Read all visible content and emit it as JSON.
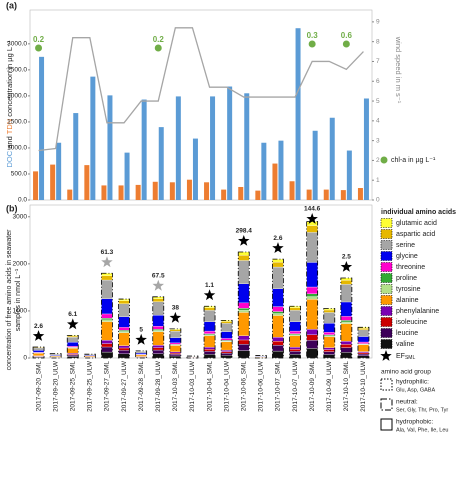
{
  "chart_data": [
    {
      "type": "bar",
      "panel_label": "(a)",
      "ylabel": "concentration in µg L⁻¹",
      "ylabel_and": "and",
      "y2label": "wind speed in m s⁻¹",
      "ylim": [
        0,
        3650
      ],
      "yticks": [
        {
          "value": 0,
          "label": "0.0"
        },
        {
          "value": 500,
          "label": "500.0"
        },
        {
          "value": 1000,
          "label": "1000.0"
        },
        {
          "value": 1500,
          "label": "1500.0"
        },
        {
          "value": 2000,
          "label": "2000.0"
        },
        {
          "value": 2500,
          "label": "2500.0"
        },
        {
          "value": 3000,
          "label": "3000.0"
        }
      ],
      "y2lim": [
        0,
        9.6
      ],
      "y2ticks": [
        0,
        1,
        2,
        3,
        4,
        5,
        6,
        7,
        8,
        9
      ],
      "series": [
        {
          "name": "DOC",
          "color": "#5b9bd5",
          "values": [
            2750,
            1100,
            1670,
            2370,
            2010,
            910,
            1930,
            1400,
            1990,
            1180,
            1990,
            2180,
            2050,
            1100,
            1140,
            3300,
            1330,
            1580,
            950,
            1950
          ]
        },
        {
          "name": "TDN",
          "color": "#ed7d31",
          "values": [
            550,
            680,
            200,
            670,
            280,
            280,
            290,
            350,
            340,
            390,
            340,
            200,
            250,
            180,
            700,
            360,
            200,
            200,
            190,
            230
          ]
        },
        {
          "name": "wind speed",
          "type": "line",
          "axis": "y2",
          "color": "#a6a6a6",
          "values": [
            2.5,
            2.6,
            8.2,
            8.2,
            3.9,
            3.9,
            5.0,
            5.0,
            8.7,
            8.7,
            5.7,
            5.7,
            5.2,
            5.2,
            5.2,
            5.2,
            7.0,
            7.0,
            6.6,
            7.5
          ]
        },
        {
          "name": "chl-a in µg L⁻¹",
          "type": "dot",
          "color": "#70ad47",
          "values": [
            0.2,
            null,
            null,
            null,
            null,
            null,
            null,
            0.2,
            null,
            null,
            null,
            null,
            null,
            null,
            null,
            null,
            0.3,
            null,
            0.6,
            null
          ]
        }
      ]
    },
    {
      "type": "stacked_bar",
      "panel_label": "(b)",
      "ylabel": [
        "concentration of free amino acids in seawater",
        "samples in nmol L⁻¹"
      ],
      "legend_title": "individual amino acids",
      "ylim": [
        0,
        3250
      ],
      "yticks": [
        0,
        1000,
        2000,
        3000
      ],
      "categories": [
        "2017-09-20_SML",
        "2017-09-20_ULW",
        "2017-09-25_SML",
        "2017-09-25_ULW",
        "2017-09-27_SML",
        "2017-09-27_ULW",
        "2017-09-28_SML",
        "2017-09-28_ULW",
        "2017-10-03_SML",
        "2017-10-03_ULW",
        "2017-10-04_SML",
        "2017-10-04_ULW",
        "2017-10-06_SML",
        "2017-10-06_ULW",
        "2017-10-07_SML",
        "2017-10-07_ULW",
        "2017-10-09_SML",
        "2017-10-09_ULW",
        "2017-10-10_SML",
        "2017-10-10_ULW"
      ],
      "series": [
        {
          "name": "glutamic acid",
          "color": "#ffff33",
          "values": [
            7,
            3,
            14,
            2,
            54,
            38,
            5,
            39,
            19,
            1,
            33,
            24,
            68,
            2,
            63,
            33,
            87,
            32,
            51,
            20
          ]
        },
        {
          "name": "aspartic acid",
          "color": "#e6b800",
          "values": [
            12,
            5,
            24,
            4,
            90,
            63,
            8,
            65,
            31,
            2,
            55,
            40,
            113,
            3,
            105,
            55,
            145,
            53,
            85,
            33
          ]
        },
        {
          "name": "serine",
          "color": "#a6a6a6",
          "values": [
            51,
            20,
            106,
            18,
            396,
            275,
            33,
            286,
            136,
            9,
            242,
            176,
            495,
            11,
            462,
            242,
            638,
            231,
            374,
            143
          ]
        },
        {
          "name": "glycine",
          "color": "#0000ee",
          "values": [
            41,
            16,
            86,
            14,
            324,
            225,
            27,
            234,
            112,
            7,
            198,
            144,
            405,
            9,
            378,
            198,
            522,
            189,
            306,
            117
          ]
        },
        {
          "name": "threonine",
          "color": "#ff00cc",
          "values": [
            12,
            5,
            24,
            4,
            90,
            63,
            8,
            65,
            31,
            2,
            55,
            40,
            113,
            3,
            105,
            55,
            145,
            53,
            85,
            33
          ]
        },
        {
          "name": "proline",
          "color": "#33aa33",
          "values": [
            5,
            2,
            10,
            2,
            36,
            25,
            3,
            26,
            12,
            1,
            22,
            16,
            45,
            1,
            42,
            22,
            58,
            21,
            34,
            13
          ]
        },
        {
          "name": "tyrosine",
          "color": "#b3e08a",
          "values": [
            5,
            2,
            10,
            2,
            36,
            25,
            3,
            26,
            12,
            1,
            22,
            16,
            45,
            1,
            42,
            22,
            58,
            21,
            34,
            13
          ]
        },
        {
          "name": "alanine",
          "color": "#ff9900",
          "values": [
            51,
            20,
            106,
            18,
            396,
            275,
            33,
            286,
            136,
            9,
            242,
            176,
            495,
            11,
            462,
            242,
            638,
            231,
            374,
            143
          ]
        },
        {
          "name": "phenylalanine",
          "color": "#7a00b3",
          "values": [
            9,
            4,
            19,
            3,
            72,
            50,
            6,
            52,
            25,
            2,
            44,
            32,
            90,
            2,
            84,
            44,
            116,
            42,
            68,
            26
          ]
        },
        {
          "name": "isoleucine",
          "color": "#cc0000",
          "values": [
            9,
            4,
            19,
            3,
            72,
            50,
            6,
            52,
            25,
            2,
            44,
            32,
            90,
            2,
            84,
            44,
            116,
            42,
            68,
            26
          ]
        },
        {
          "name": "leucine",
          "color": "#3d0059",
          "values": [
            14,
            5,
            29,
            5,
            108,
            75,
            9,
            78,
            37,
            2,
            66,
            48,
            135,
            3,
            126,
            66,
            174,
            63,
            102,
            39
          ]
        },
        {
          "name": "valine",
          "color": "#111111",
          "values": [
            16,
            6,
            34,
            6,
            126,
            88,
            11,
            91,
            43,
            3,
            77,
            56,
            158,
            4,
            147,
            77,
            203,
            74,
            119,
            46
          ]
        }
      ],
      "ef": {
        "name": "EF",
        "name_sub": "SML",
        "values": [
          2.6,
          null,
          6.1,
          null,
          61.3,
          null,
          5.0,
          67.5,
          38.0,
          null,
          1.1,
          null,
          298.4,
          null,
          2.6,
          null,
          144.6,
          null,
          2.5,
          null
        ],
        "colors": [
          "#000000",
          null,
          "#000000",
          null,
          "#a6a6a6",
          null,
          "#000000",
          "#a6a6a6",
          "#000000",
          null,
          "#000000",
          null,
          "#000000",
          null,
          "#000000",
          null,
          "#000000",
          null,
          "#000000",
          null
        ]
      },
      "group_legend": {
        "title": "amino acid group",
        "groups": [
          {
            "name": "hydrophilic:",
            "members": "Glu, Asp, GABA",
            "dash": "1.5,1.5"
          },
          {
            "name": "neutral:",
            "members": "Ser, Gly, Thr, Pro, Tyr",
            "dash": "6,2,1.5,2"
          },
          {
            "name": "hydrophobic:",
            "members": "Ala, Val, Phe, Ile, Leu",
            "dash": "none"
          }
        ]
      }
    }
  ]
}
